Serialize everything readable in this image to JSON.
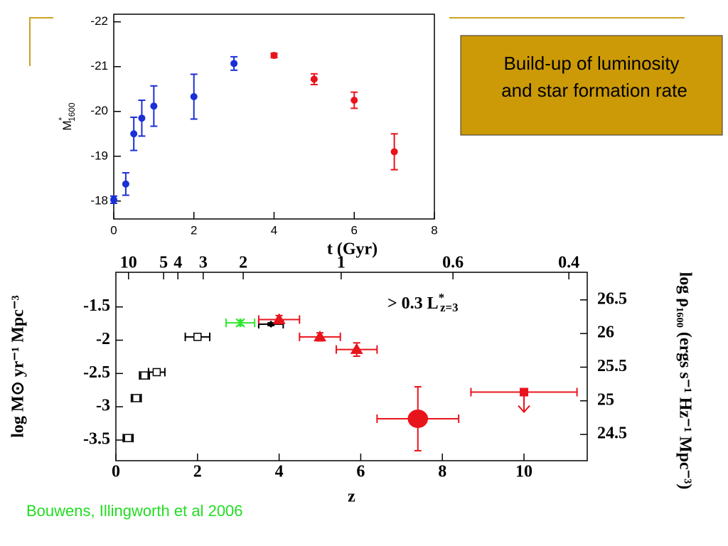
{
  "slide": {
    "callout": [
      "Build-up of luminosity",
      "and star formation rate"
    ],
    "citation": "Bouwens, Illingworth et al 2006"
  },
  "chart_data": [
    {
      "type": "scatter",
      "xlabel": "t (Gyr)",
      "ylabel": {
        "text": "M",
        "sup": "*",
        "sub": "1600"
      },
      "xlim": [
        0,
        8
      ],
      "xticks": [
        0,
        2,
        4,
        6,
        8
      ],
      "ylim": [
        -17.6,
        -22.17
      ],
      "yticks": [
        -22,
        -21,
        -20,
        -19,
        -18
      ],
      "series": [
        {
          "color": "#1a2fd6",
          "marker": "circle",
          "x": [
            0,
            0.3,
            0.5,
            0.7,
            1,
            2,
            3
          ],
          "values": [
            -18.03,
            -18.38,
            -19.5,
            -19.85,
            -20.12,
            -20.33,
            -21.07
          ],
          "yerr": [
            0.08,
            0.25,
            0.37,
            0.4,
            0.45,
            0.5,
            0.15
          ]
        },
        {
          "color": "#e8141c",
          "marker": "circle",
          "x": [
            4,
            5,
            6,
            7
          ],
          "values": [
            -21.25,
            -20.72,
            -20.25,
            -19.1
          ],
          "yerr": [
            0.05,
            0.12,
            0.18,
            0.4
          ]
        }
      ]
    },
    {
      "type": "scatter",
      "xlabel": "z",
      "ylabel": "log M⊙ yr⁻¹ Mpc⁻³",
      "y2label": "log ρ₁₆₀₀ (ergs s⁻¹ Hz⁻¹ Mpc⁻³)",
      "annotation": {
        "text": "> 0.3 L",
        "sup": "*",
        "sub": "z=3"
      },
      "xlim": [
        0,
        11.55
      ],
      "xticks": [
        0,
        2,
        4,
        6,
        8,
        10
      ],
      "x2ticks": [
        {
          "value": 0.31,
          "label": "10"
        },
        {
          "value": 1.17,
          "label": "5"
        },
        {
          "value": 1.52,
          "label": "4"
        },
        {
          "value": 2.14,
          "label": "3"
        },
        {
          "value": 3.12,
          "label": "2"
        },
        {
          "value": 5.52,
          "label": "1"
        },
        {
          "value": 8.26,
          "label": "0.6"
        },
        {
          "value": 11.1,
          "label": "0.4"
        }
      ],
      "ylim": [
        -3.81,
        -0.98
      ],
      "yticks": [
        -1.5,
        -2,
        -2.5,
        -3,
        -3.5
      ],
      "y2lim": [
        24.11,
        26.91
      ],
      "y2ticks": [
        26.5,
        26,
        25.5,
        25,
        24.5
      ],
      "series": [
        {
          "color": "#000000",
          "marker": "open-square",
          "x": [
            0.3,
            0.5,
            0.7,
            1.0,
            2.0
          ],
          "values": [
            -3.47,
            -2.87,
            -2.53,
            -2.48,
            -1.95
          ],
          "xerr": [
            0.12,
            0.12,
            0.12,
            0.2,
            0.3
          ],
          "yerr": [
            0.04,
            0.03,
            0.03,
            0.03,
            0.03
          ]
        },
        {
          "color": "#2ee82e",
          "marker": "cross",
          "x": [
            3.05
          ],
          "values": [
            -1.74
          ],
          "xerr": [
            0.35
          ],
          "yerr": [
            0.04
          ]
        },
        {
          "color": "#000000",
          "marker": "diamond",
          "x": [
            3.8
          ],
          "values": [
            -1.76
          ],
          "xerr": [
            0.3
          ],
          "yerr": [
            0.02
          ]
        },
        {
          "color": "#e8141c",
          "marker": "triangle",
          "x": [
            4.0,
            5.0,
            5.9
          ],
          "values": [
            -1.69,
            -1.95,
            -2.14
          ],
          "xerr": [
            0.5,
            0.5,
            0.5
          ],
          "yerr": [
            0.06,
            0.06,
            0.1
          ]
        },
        {
          "color": "#e8141c",
          "marker": "circle",
          "x": [
            7.4
          ],
          "values": [
            -3.18
          ],
          "xerr": [
            1.0
          ],
          "yerr": [
            0.48
          ]
        },
        {
          "color": "#e8141c",
          "marker": "square",
          "upper_limit": true,
          "x": [
            10.0
          ],
          "values": [
            -2.78
          ],
          "xerr": [
            1.3
          ],
          "yerr": [
            0
          ]
        }
      ]
    }
  ]
}
